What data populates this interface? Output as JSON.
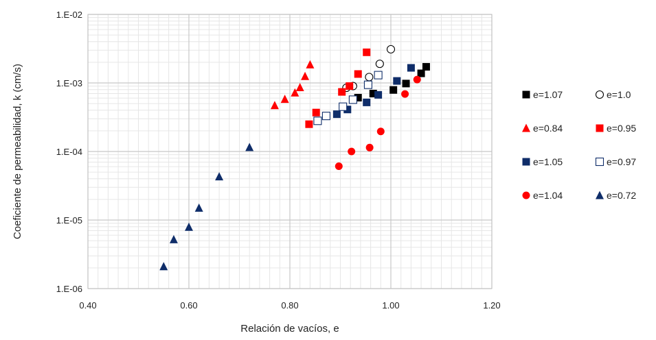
{
  "chart_data": {
    "type": "scatter",
    "xlabel": "Relación de vacíos, e",
    "ylabel": "Coeficiente de permeabilidad, k (cm/s)",
    "xlim": [
      0.4,
      1.2
    ],
    "ylim": [
      1e-06,
      0.01
    ],
    "yscale": "log",
    "x_ticks": [
      "0.40",
      "0.60",
      "0.80",
      "1.00",
      "1.20"
    ],
    "y_ticks": [
      "1.E-06",
      "1.E-05",
      "1.E-04",
      "1.E-03",
      "1.E-02"
    ],
    "grid": true,
    "legend_position": "right",
    "series": [
      {
        "name": "e=1.07",
        "marker": "square",
        "filled": true,
        "color": "#000000",
        "points": [
          [
            0.935,
            0.00061
          ],
          [
            0.965,
            0.0007
          ],
          [
            1.005,
            0.00079
          ],
          [
            1.03,
            0.00098
          ],
          [
            1.06,
            0.00138
          ],
          [
            1.07,
            0.00172
          ]
        ]
      },
      {
        "name": "e=1.0",
        "marker": "circle",
        "filled": false,
        "color": "#000000",
        "points": [
          [
            0.912,
            0.00085
          ],
          [
            0.925,
            0.0009
          ],
          [
            0.957,
            0.00122
          ],
          [
            0.978,
            0.0019
          ],
          [
            1.0,
            0.0031
          ]
        ]
      },
      {
        "name": "e=0.84",
        "marker": "triangle",
        "filled": true,
        "color": "#ff0000",
        "points": [
          [
            0.77,
            0.00047
          ],
          [
            0.79,
            0.00058
          ],
          [
            0.81,
            0.00072
          ],
          [
            0.82,
            0.00086
          ],
          [
            0.83,
            0.00125
          ],
          [
            0.84,
            0.00185
          ]
        ]
      },
      {
        "name": "e=0.95",
        "marker": "square",
        "filled": true,
        "color": "#ff0000",
        "points": [
          [
            0.838,
            0.00025
          ],
          [
            0.852,
            0.00037
          ],
          [
            0.903,
            0.00074
          ],
          [
            0.918,
            0.0009
          ],
          [
            0.935,
            0.00135
          ],
          [
            0.952,
            0.0028
          ]
        ]
      },
      {
        "name": "e=1.05",
        "marker": "square",
        "filled": true,
        "color": "#0f2d69",
        "points": [
          [
            0.893,
            0.00035
          ],
          [
            0.914,
            0.00041
          ],
          [
            0.952,
            0.00052
          ],
          [
            0.975,
            0.00067
          ],
          [
            1.012,
            0.00107
          ],
          [
            1.04,
            0.00166
          ]
        ]
      },
      {
        "name": "e=0.97",
        "marker": "square",
        "filled": false,
        "color": "#0f2d69",
        "points": [
          [
            0.855,
            0.00028
          ],
          [
            0.872,
            0.00033
          ],
          [
            0.905,
            0.00045
          ],
          [
            0.925,
            0.00057
          ],
          [
            0.955,
            0.00094
          ],
          [
            0.975,
            0.0013
          ]
        ]
      },
      {
        "name": "e=1.04",
        "marker": "circle",
        "filled": true,
        "color": "#ff0000",
        "points": [
          [
            0.897,
            6.1e-05
          ],
          [
            0.922,
            0.0001
          ],
          [
            0.958,
            0.000114
          ],
          [
            0.98,
            0.000196
          ],
          [
            1.028,
            0.00069
          ],
          [
            1.052,
            0.00112
          ]
        ]
      },
      {
        "name": "e=0.72",
        "marker": "triangle",
        "filled": true,
        "color": "#0f2d69",
        "points": [
          [
            0.55,
            2.1e-06
          ],
          [
            0.57,
            5.2e-06
          ],
          [
            0.6,
            7.9e-06
          ],
          [
            0.62,
            1.5e-05
          ],
          [
            0.66,
            4.3e-05
          ],
          [
            0.72,
            0.000115
          ]
        ]
      }
    ]
  }
}
